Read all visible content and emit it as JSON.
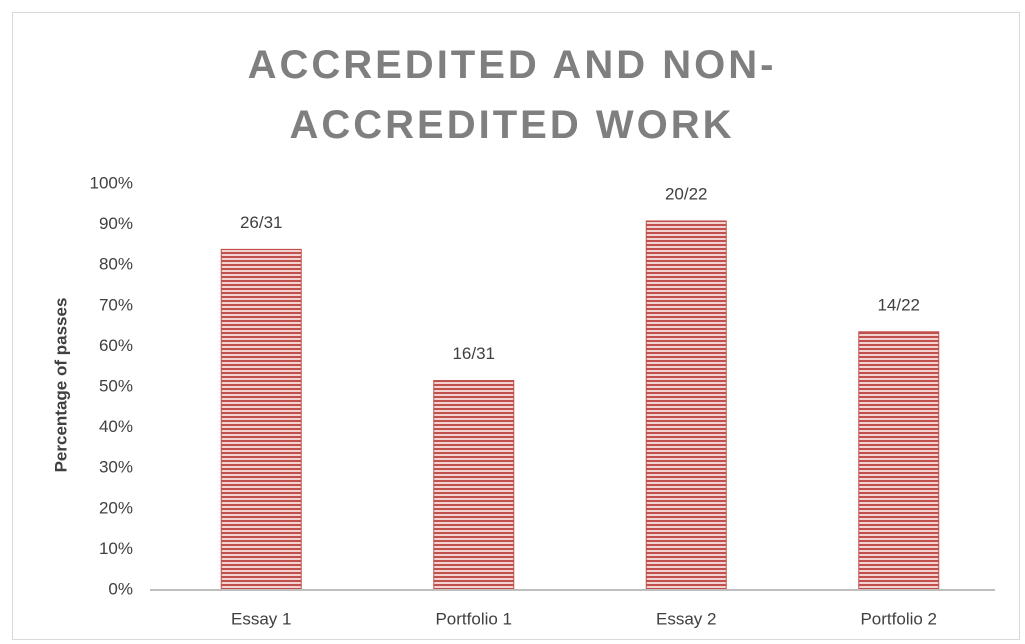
{
  "chart_data": {
    "type": "bar",
    "title": "ACCREDITED AND NON-ACCREDITED WORK",
    "y_label": "Percentage of passes",
    "categories": [
      "Essay 1",
      "Portfolio 1",
      "Essay 2",
      "Portfolio 2"
    ],
    "values": [
      83.9,
      51.6,
      90.9,
      63.6
    ],
    "value_labels": [
      "26/31",
      "16/31",
      "20/22",
      "14/22"
    ],
    "color": "#c0504d",
    "ylim": [
      0,
      100
    ],
    "yticks": [
      {
        "value": 0,
        "label": "0%"
      },
      {
        "value": 10,
        "label": "10%"
      },
      {
        "value": 20,
        "label": "20%"
      },
      {
        "value": 30,
        "label": "30%"
      },
      {
        "value": 40,
        "label": "40%"
      },
      {
        "value": 50,
        "label": "50%"
      },
      {
        "value": 60,
        "label": "60%"
      },
      {
        "value": 70,
        "label": "70%"
      },
      {
        "value": 80,
        "label": "80%"
      },
      {
        "value": 90,
        "label": "90%"
      },
      {
        "value": 100,
        "label": "100%"
      }
    ],
    "grid": false
  }
}
